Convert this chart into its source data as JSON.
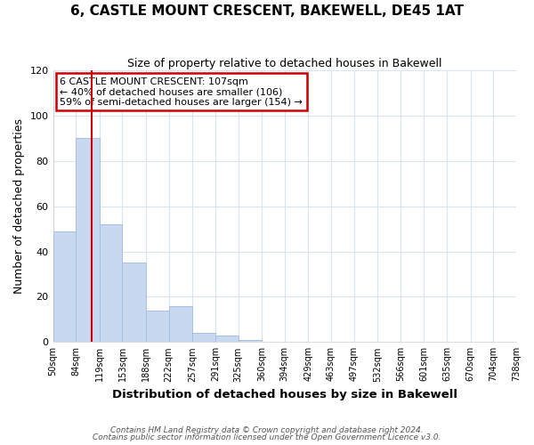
{
  "title": "6, CASTLE MOUNT CRESCENT, BAKEWELL, DE45 1AT",
  "subtitle": "Size of property relative to detached houses in Bakewell",
  "xlabel": "Distribution of detached houses by size in Bakewell",
  "ylabel": "Number of detached properties",
  "bin_edges": [
    50,
    84,
    119,
    153,
    188,
    222,
    257,
    291,
    325,
    360,
    394,
    429,
    463,
    497,
    532,
    566,
    601,
    635,
    670,
    704,
    738
  ],
  "bar_heights": [
    49,
    90,
    52,
    35,
    14,
    16,
    4,
    3,
    1,
    0,
    0,
    0,
    0,
    0,
    0,
    0,
    0,
    0,
    0,
    0
  ],
  "bar_color": "#c8d8f0",
  "bar_edgecolor": "#a8c0e0",
  "property_size": 107,
  "vline_color": "#cc0000",
  "annotation_line1": "6 CASTLE MOUNT CRESCENT: 107sqm",
  "annotation_line2": "← 40% of detached houses are smaller (106)",
  "annotation_line3": "59% of semi-detached houses are larger (154) →",
  "annotation_box_color": "white",
  "annotation_box_edgecolor": "#cc0000",
  "ylim": [
    0,
    120
  ],
  "yticks": [
    0,
    20,
    40,
    60,
    80,
    100,
    120
  ],
  "footnote1": "Contains HM Land Registry data © Crown copyright and database right 2024.",
  "footnote2": "Contains public sector information licensed under the Open Government Licence v3.0.",
  "background_color": "#ffffff",
  "grid_color": "#d8e4f0"
}
